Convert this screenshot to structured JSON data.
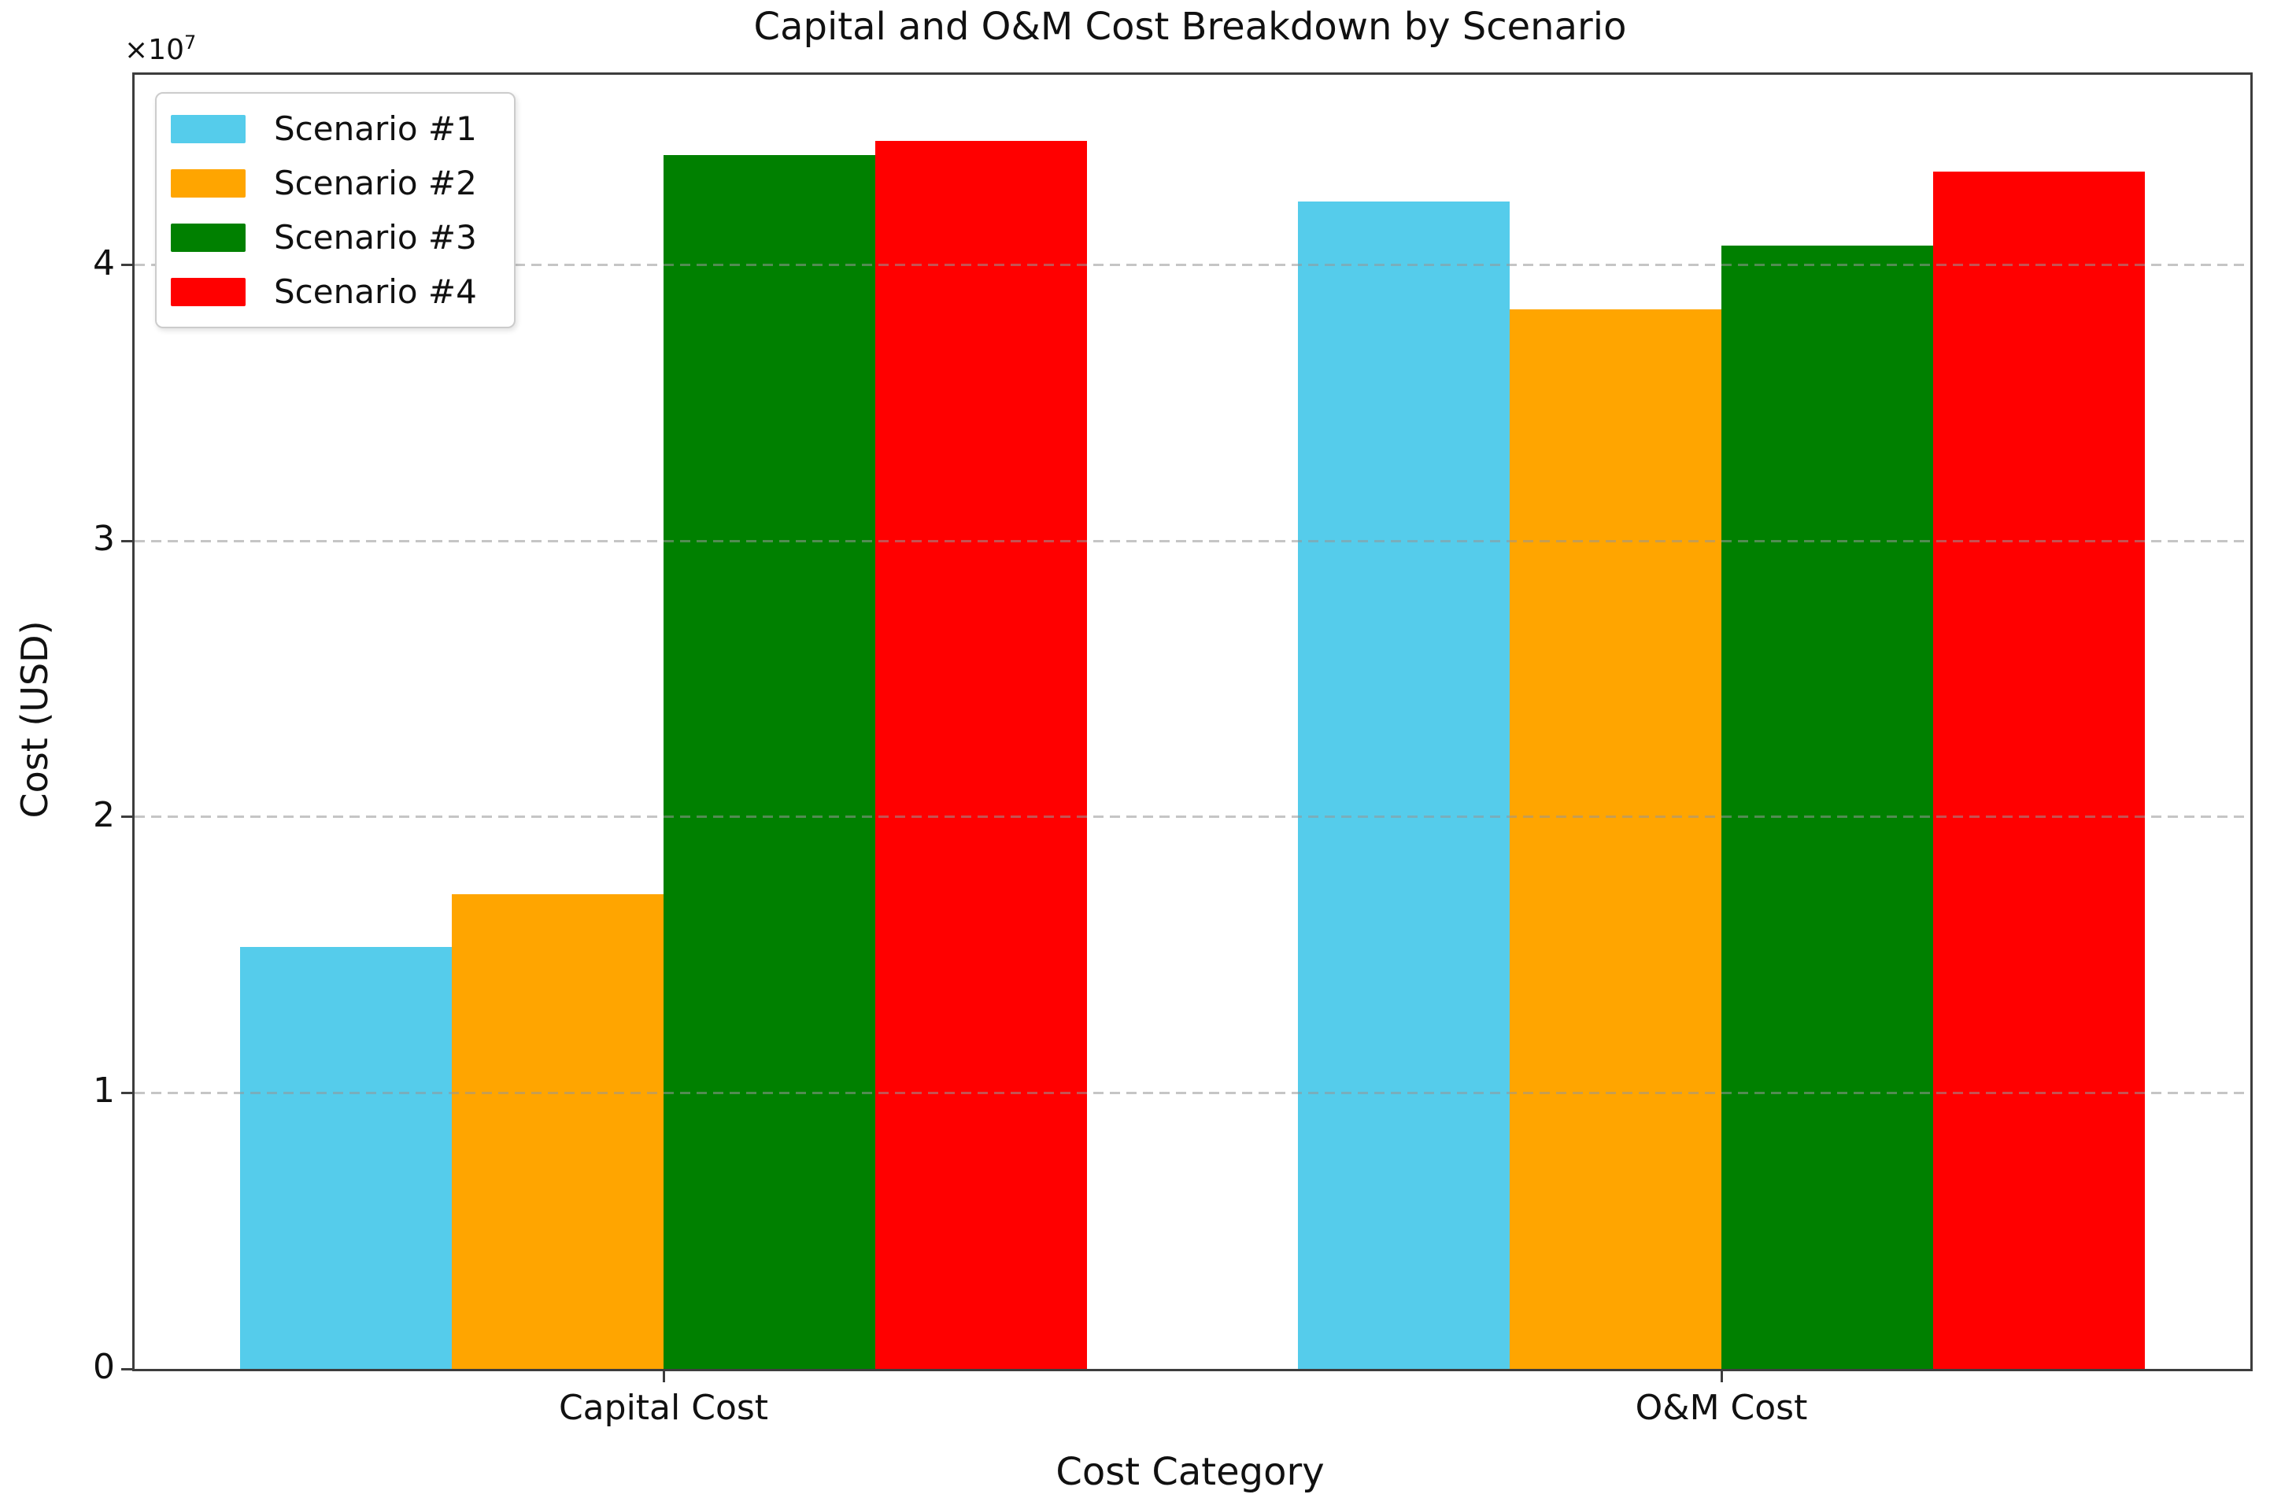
{
  "title": "Capital and O&M Cost Breakdown by Scenario",
  "axis_offset": {
    "multiplier": "×10",
    "exponent": "7"
  },
  "chart_data": {
    "type": "bar",
    "title": "Capital and O&M Cost Breakdown by Scenario",
    "xlabel": "Cost Category",
    "ylabel": "Cost (USD)",
    "categories": [
      "Capital Cost",
      "O&M Cost"
    ],
    "series": [
      {
        "name": "Scenario #1",
        "color": "#55CCEB",
        "values": [
          15300000,
          42300000
        ]
      },
      {
        "name": "Scenario #2",
        "color": "#FFA500",
        "values": [
          17200000,
          38400000
        ]
      },
      {
        "name": "Scenario #3",
        "color": "#008000",
        "values": [
          44000000,
          40700000
        ]
      },
      {
        "name": "Scenario #4",
        "color": "#FF0000",
        "values": [
          44500000,
          43400000
        ]
      }
    ],
    "ylim": [
      0,
      46900000
    ],
    "yticks": [
      0,
      10000000,
      20000000,
      30000000,
      40000000
    ],
    "ytick_labels": [
      "0",
      "1",
      "2",
      "3",
      "4"
    ],
    "y_scale_factor": 10000000,
    "grid": true,
    "grid_style": "dashed",
    "grid_above_bars": true,
    "legend_position": "upper-left",
    "bar_width_frac": 0.2,
    "colors": {
      "spine": "#3d3d3d",
      "background": "#ffffff",
      "text": "#111111",
      "gridline": "#b4b4b4"
    }
  }
}
